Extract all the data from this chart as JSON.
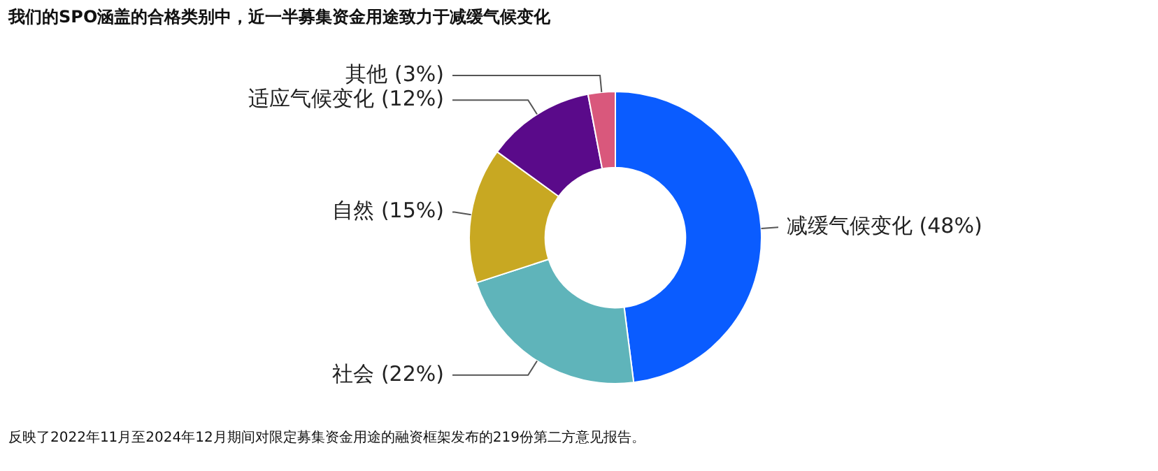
{
  "chart_data": {
    "type": "donut",
    "title": "我们的SPO涵盖的合格类别中，近一半募集资金用途致力于减缓气候变化",
    "categories": [
      "减缓气候变化 (48%)",
      "社会 (22%)",
      "自然 (15%)",
      "适应气候变化 (12%)",
      "其他 (3%)"
    ],
    "values": [
      48,
      22,
      15,
      12,
      3
    ],
    "colors": [
      "#0a5cff",
      "#5fb4ba",
      "#c8a822",
      "#5a0a8a",
      "#d9587c"
    ],
    "annotations": [
      "反映了2022年11月至2024年12月期间对限定募集资金用途的融资框架发布的219份第二方意见报告。"
    ],
    "legend": false
  }
}
